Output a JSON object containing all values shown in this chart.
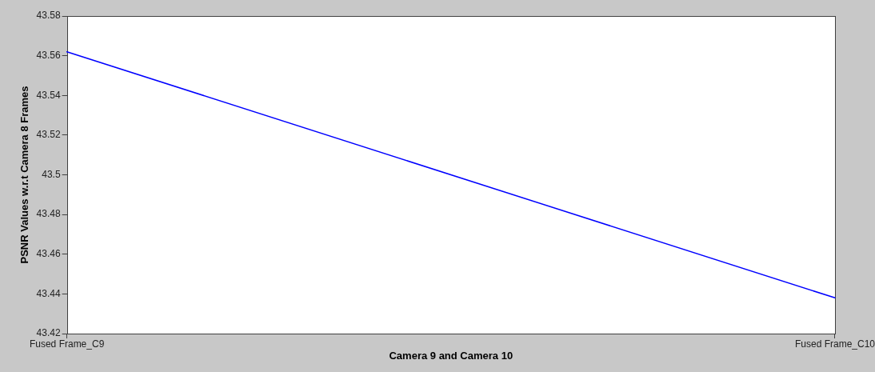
{
  "chart_data": {
    "type": "line",
    "xlabel": "Camera 9 and Camera 10",
    "ylabel": "PSNR Values w.r.t Camera 8 Frames",
    "categories": [
      "Fused Frame_C9",
      "Fused Frame_C10"
    ],
    "series": [
      {
        "color": "#0000ff",
        "values": [
          43.562,
          43.438
        ]
      }
    ],
    "ylim": [
      43.42,
      43.58
    ],
    "yticks": [
      43.42,
      43.44,
      43.46,
      43.48,
      43.5,
      43.52,
      43.54,
      43.56,
      43.58
    ],
    "legend": false,
    "marker": "none",
    "line_style": "solid"
  }
}
